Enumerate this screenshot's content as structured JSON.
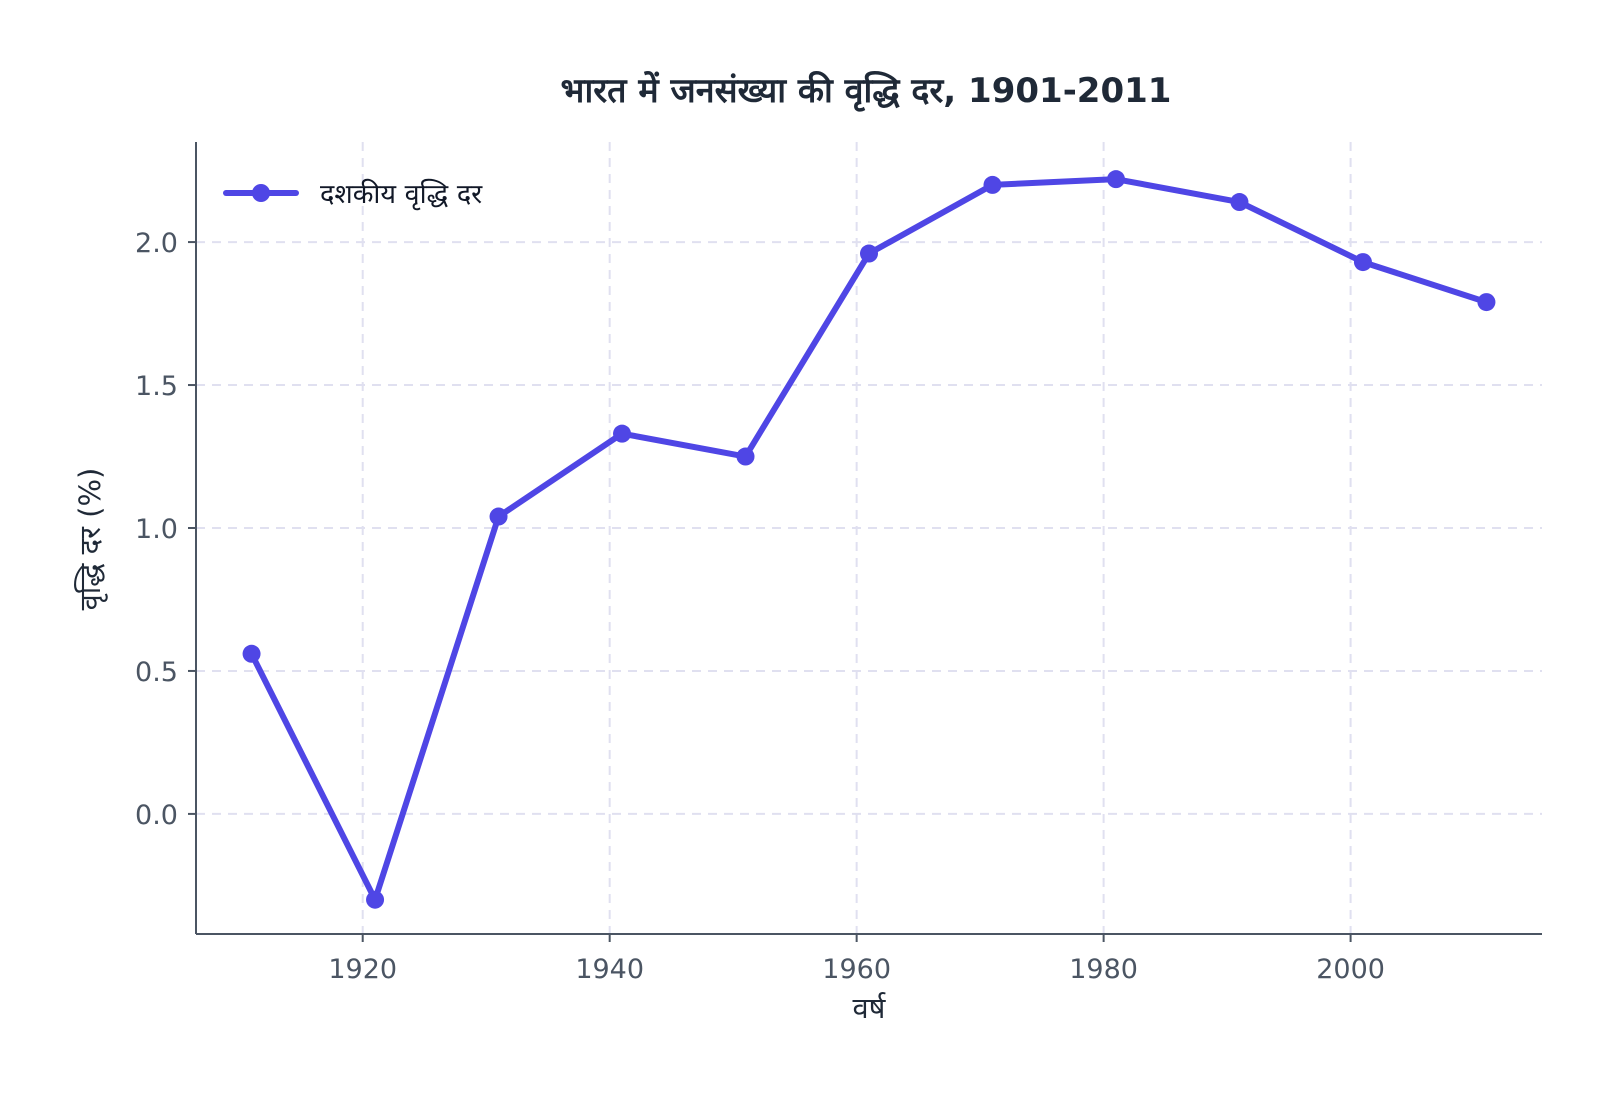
{
  "chart_data": {
    "type": "line",
    "title": "भारत में जनसंख्या की वृद्धि दर, 1901-2011",
    "xlabel": "वर्ष",
    "ylabel": "वृद्धि दर (%)",
    "x": [
      1911,
      1921,
      1931,
      1941,
      1951,
      1961,
      1971,
      1981,
      1991,
      2001,
      2011
    ],
    "series": [
      {
        "name": "दशकीय वृद्धि दर",
        "values": [
          0.56,
          -0.3,
          1.04,
          1.33,
          1.25,
          1.96,
          2.2,
          2.22,
          2.14,
          1.93,
          1.79
        ]
      }
    ],
    "xticks": [
      "1920",
      "1940",
      "1960",
      "1980",
      "2000"
    ],
    "yticks": [
      "0.0",
      "0.5",
      "1.0",
      "1.5",
      "2.0"
    ],
    "xlim": [
      1906.5,
      2015.5
    ],
    "ylim": [
      -0.42,
      2.35
    ],
    "grid": true,
    "legend": "top-left",
    "colors": {
      "line": "#4f46e5",
      "grid": "#e0e0f0",
      "axis": "#4b5563",
      "text": "#1f2937"
    }
  }
}
